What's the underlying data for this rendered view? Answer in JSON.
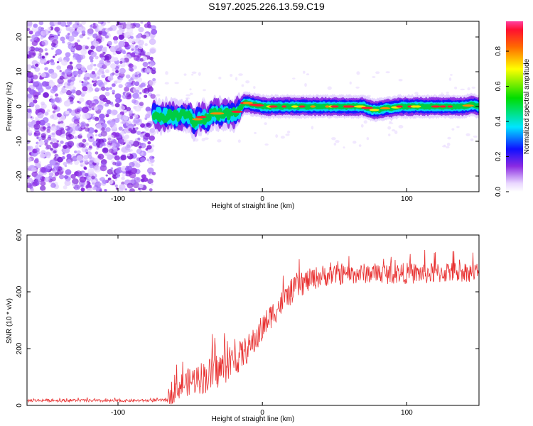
{
  "title": "S197.2025.226.13.59.C19",
  "chart_data": [
    {
      "type": "heatmap",
      "xlabel": "Height of straight line (km)",
      "ylabel": "Frequency (Hz)",
      "xlim": [
        -163,
        150
      ],
      "ylim": [
        -24.5,
        24.5
      ],
      "xticks": [
        -100,
        0,
        100
      ],
      "xtick_labels": [
        "-100",
        "0",
        "100"
      ],
      "yticks": [
        -20,
        -10,
        0,
        10,
        20
      ],
      "ytick_labels": [
        "-20",
        "-10",
        "0",
        "10",
        "20"
      ],
      "noise_region_x": [
        -163,
        -75
      ],
      "signal_trace": {
        "x": [
          -76,
          -70,
          -65,
          -60,
          -55,
          -50,
          -47,
          -44,
          -41,
          -38,
          -34,
          -30,
          -26,
          -22,
          -19,
          -16,
          -13,
          -10,
          -7,
          -4,
          0,
          10,
          20,
          30,
          40,
          50,
          60,
          70,
          76,
          80,
          85,
          90,
          95,
          100,
          110,
          120,
          130,
          140,
          145,
          150
        ],
        "freq": [
          -2,
          -3,
          -2.5,
          -3,
          -2.5,
          -3,
          -5,
          -3,
          -3,
          -4,
          -2,
          -2,
          -2,
          -2.5,
          -2,
          -1,
          1,
          1,
          0.5,
          0.5,
          0,
          0,
          0,
          0,
          0,
          0,
          0,
          0,
          -1,
          -1,
          -0.5,
          -0.5,
          0,
          0,
          0,
          0,
          0,
          0,
          0.5,
          0
        ]
      },
      "colorbar": {
        "label": "Normalized spectral amplitude",
        "ticks": [
          0.0,
          0.2,
          0.4,
          0.6,
          0.8
        ],
        "tick_labels": [
          "0.0",
          "0.2",
          "0.4",
          "0.6",
          "0.8"
        ],
        "range": [
          0,
          0.97
        ]
      }
    },
    {
      "type": "line",
      "xlabel": "Height of straight line (km)",
      "ylabel": "SNR (10 * v/v)",
      "xlim": [
        -163,
        150
      ],
      "ylim": [
        0,
        600
      ],
      "xticks": [
        -100,
        0,
        100
      ],
      "xtick_labels": [
        "-100",
        "0",
        "100"
      ],
      "yticks": [
        0,
        200,
        400,
        600
      ],
      "ytick_labels": [
        "0",
        "200",
        "400",
        "600"
      ],
      "color": "#e83030",
      "series": [
        {
          "name": "SNR",
          "x": [
            -163,
            -150,
            -140,
            -130,
            -120,
            -110,
            -100,
            -90,
            -80,
            -70,
            -66,
            -64,
            -60,
            -55,
            -50,
            -45,
            -40,
            -35,
            -30,
            -25,
            -20,
            -15,
            -10,
            -5,
            0,
            5,
            10,
            15,
            20,
            25,
            30,
            35,
            40,
            50,
            60,
            70,
            80,
            90,
            100,
            110,
            120,
            130,
            140,
            150
          ],
          "mean": [
            17,
            18,
            17,
            18,
            17,
            16,
            16,
            17,
            17,
            18,
            20,
            45,
            55,
            75,
            85,
            95,
            100,
            110,
            125,
            140,
            155,
            175,
            200,
            230,
            270,
            310,
            340,
            370,
            400,
            420,
            435,
            445,
            455,
            460,
            460,
            465,
            465,
            465,
            465,
            465,
            465,
            470,
            470,
            470
          ],
          "amp": [
            10,
            10,
            10,
            10,
            10,
            10,
            10,
            10,
            10,
            10,
            15,
            90,
            80,
            90,
            100,
            110,
            120,
            130,
            130,
            120,
            110,
            110,
            100,
            100,
            100,
            90,
            90,
            90,
            90,
            85,
            85,
            80,
            80,
            70,
            70,
            70,
            75,
            75,
            75,
            75,
            75,
            75,
            70,
            70
          ]
        }
      ]
    }
  ]
}
